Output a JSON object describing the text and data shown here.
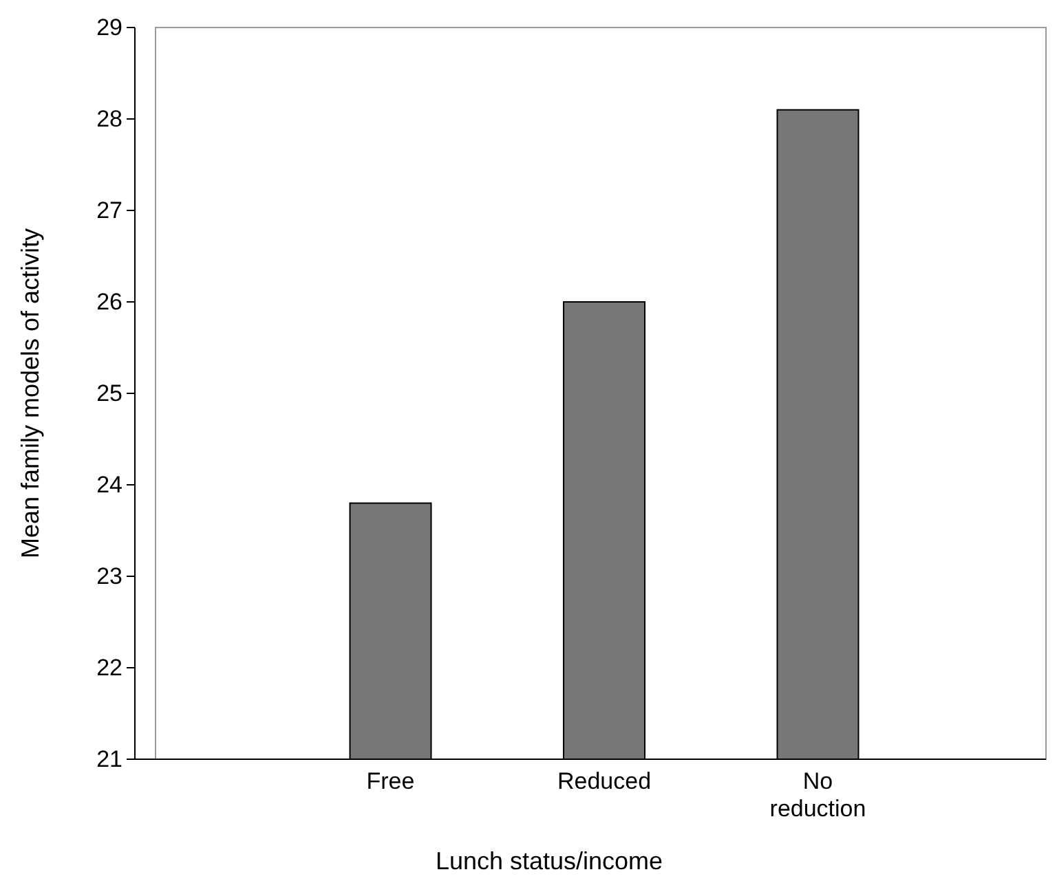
{
  "chart_data": {
    "type": "bar",
    "xlabel": "Lunch status/income",
    "ylabel": "Mean family models of activity",
    "categories": [
      "Free",
      "Reduced",
      "No reduction"
    ],
    "values": [
      23.8,
      26.0,
      28.1
    ],
    "color": "#777777",
    "ylim": [
      21,
      29
    ],
    "yticks": [
      21,
      22,
      23,
      24,
      25,
      26,
      27,
      28,
      29
    ],
    "grid": false
  }
}
